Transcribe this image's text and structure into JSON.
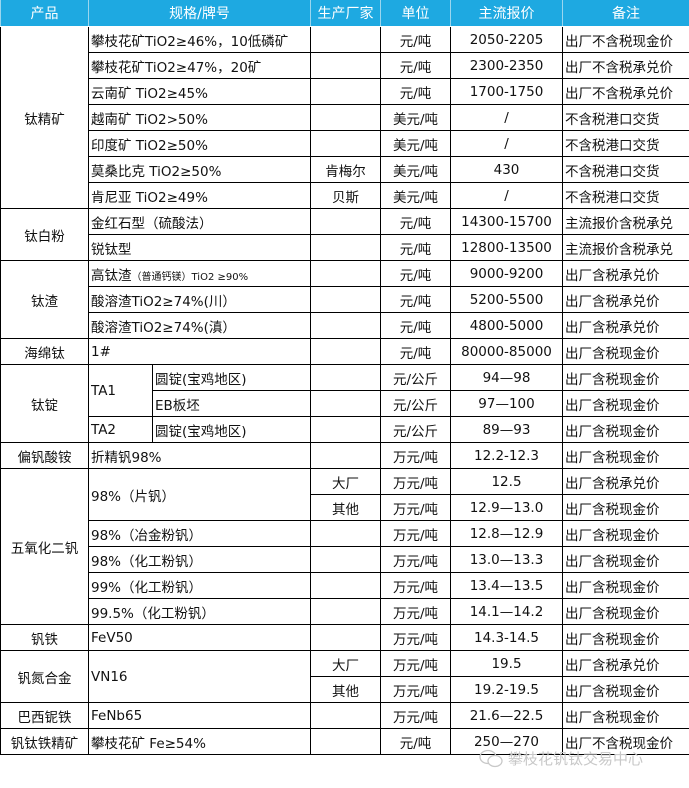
{
  "headers": [
    "产品",
    "规格/牌号",
    "生产厂家",
    "单位",
    "主流报价",
    "备注"
  ],
  "groups": [
    {
      "product": "钛精矿",
      "rows": [
        {
          "spec": "攀枝花矿TiO2≥46%，10低磷矿",
          "maker": "",
          "unit": "元/吨",
          "price": "2050-2205",
          "note": "出厂不含税现金价"
        },
        {
          "spec": "攀枝花矿TiO2≥47%，20矿",
          "maker": "",
          "unit": "元/吨",
          "price": "2300-2350",
          "note": "出厂不含税承兑价"
        },
        {
          "spec": "云南矿 TiO2≥45%",
          "maker": "",
          "unit": "元/吨",
          "price": "1700-1750",
          "note": "出厂不含税承兑价"
        },
        {
          "spec": "越南矿 TiO2>50%",
          "maker": "",
          "unit": "美元/吨",
          "price": "/",
          "note": "不含税港口交货"
        },
        {
          "spec": "印度矿 TiO2≥50%",
          "maker": "",
          "unit": "美元/吨",
          "price": "/",
          "note": "不含税港口交货"
        },
        {
          "spec": "莫桑比克 TiO2≥50%",
          "maker": "肯梅尔",
          "unit": "美元/吨",
          "price": "430",
          "note": "不含税港口交货"
        },
        {
          "spec": "肯尼亚 TiO2≥49%",
          "maker": "贝斯",
          "unit": "美元/吨",
          "price": "/",
          "note": "不含税港口交货"
        }
      ]
    },
    {
      "product": "钛白粉",
      "rows": [
        {
          "spec": "金红石型（硫酸法）",
          "maker": "",
          "unit": "元/吨",
          "price": "14300-15700",
          "note": "主流报价含税承兑"
        },
        {
          "spec": "锐钛型",
          "maker": "",
          "unit": "元/吨",
          "price": "12800-13500",
          "note": "主流报价含税承兑"
        }
      ]
    },
    {
      "product": "钛渣",
      "rows": [
        {
          "spec": "高钛渣",
          "spec_small": "（普通钙镁）TiO2 ≥90%",
          "maker": "",
          "unit": "元/吨",
          "price": "9000-9200",
          "note": "出厂含税承兑价"
        },
        {
          "spec": "酸溶渣TiO2≥74%(川）",
          "maker": "",
          "unit": "元/吨",
          "price": "5200-5500",
          "note": "出厂含税承兑价"
        },
        {
          "spec": "酸溶渣TiO2≥74%(滇）",
          "maker": "",
          "unit": "元/吨",
          "price": "4800-5000",
          "note": "出厂含税承兑价"
        }
      ]
    },
    {
      "product": "海绵钛",
      "rows": [
        {
          "spec": "1#",
          "maker": "",
          "unit": "元/吨",
          "price": "80000-85000",
          "note": "出厂含税现金价"
        }
      ]
    },
    {
      "product": "钛锭",
      "rows": [
        {
          "grade": "TA1",
          "spec": "圆锭(宝鸡地区)",
          "maker": "",
          "unit": "元/公斤",
          "price": "94—98",
          "note": "出厂含税现金价"
        },
        {
          "spec": "EB板坯",
          "maker": "",
          "unit": "元/公斤",
          "price": "97—100",
          "note": "出厂含税现金价"
        },
        {
          "grade": "TA2",
          "spec": "圆锭(宝鸡地区)",
          "maker": "",
          "unit": "元/公斤",
          "price": "89—93",
          "note": "出厂含税现金价"
        }
      ]
    },
    {
      "product": "偏钒酸铵",
      "rows": [
        {
          "spec": "折精钒98%",
          "maker": "",
          "unit": "万元/吨",
          "price": "12.2-12.3",
          "note": "出厂含税现金价"
        }
      ]
    },
    {
      "product": "五氧化二钒",
      "rows": [
        {
          "spec": "98%（片钒）",
          "maker": "大厂",
          "unit": "万元/吨",
          "price": "12.5",
          "note": "出厂含税承兑价"
        },
        {
          "maker": "其他",
          "unit": "万元/吨",
          "price": "12.9—13.0",
          "note": "出厂含税现金价"
        },
        {
          "spec": "98%（冶金粉钒）",
          "maker": "",
          "unit": "万元/吨",
          "price": "12.8—12.9",
          "note": "出厂含税现金价"
        },
        {
          "spec": "98%（化工粉钒）",
          "maker": "",
          "unit": "万元/吨",
          "price": "13.0—13.3",
          "note": "出厂含税现金价"
        },
        {
          "spec": "99%（化工粉钒）",
          "maker": "",
          "unit": "万元/吨",
          "price": "13.4—13.5",
          "note": "出厂含税现金价"
        },
        {
          "spec": "99.5%（化工粉钒）",
          "maker": "",
          "unit": "万元/吨",
          "price": "14.1—14.2",
          "note": "出厂含税现金价"
        }
      ]
    },
    {
      "product": "钒铁",
      "rows": [
        {
          "spec": "FeV50",
          "maker": "",
          "unit": "万元/吨",
          "price": "14.3-14.5",
          "note": "出厂含税现金价"
        }
      ]
    },
    {
      "product": "钒氮合金",
      "rows": [
        {
          "spec": "VN16",
          "maker": "大厂",
          "unit": "万元/吨",
          "price": "19.5",
          "note": "出厂含税承兑价"
        },
        {
          "maker": "其他",
          "unit": "万元/吨",
          "price": "19.2-19.5",
          "note": "出厂含税现金价"
        }
      ]
    },
    {
      "product": "巴西铌铁",
      "rows": [
        {
          "spec": "FeNb65",
          "maker": "",
          "unit": "万元/吨",
          "price": "21.6—22.5",
          "note": "出厂含税现金价"
        }
      ]
    },
    {
      "product": "钒钛铁精矿",
      "rows": [
        {
          "spec": "攀枝花矿 Fe≥54%",
          "maker": "",
          "unit": "元/吨",
          "price": "250—270",
          "note": "出厂不含税现金价"
        }
      ]
    }
  ],
  "watermark": {
    "text": "攀枝花钒钛交易中心",
    "icon": "wechat-icon"
  },
  "colors": {
    "header_bg": "#1ea9e1",
    "header_text": "#ffffff"
  }
}
